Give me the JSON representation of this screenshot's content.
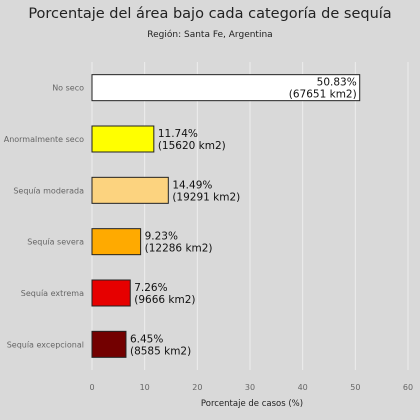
{
  "chart_data": {
    "type": "bar",
    "orientation": "horizontal",
    "title": "Porcentaje del área bajo cada categoría de sequía",
    "subtitle": "Región: Santa Fe, Argentina",
    "xlabel": "Porcentaje de casos (%)",
    "xlim": [
      0,
      60
    ],
    "xticks": [
      "0",
      "10",
      "20",
      "30",
      "40",
      "50",
      "60"
    ],
    "grid": true,
    "categories": [
      "No seco",
      "Anormalmente seco",
      "Sequía moderada",
      "Sequía severa",
      "Sequía extrema",
      "Sequía excepcional"
    ],
    "values": [
      50.83,
      11.74,
      14.49,
      9.23,
      7.26,
      6.45
    ],
    "labels": [
      [
        "50.83%",
        "(67651 km2)"
      ],
      [
        "11.74%",
        "(15620 km2)"
      ],
      [
        "14.49%",
        "(19291 km2)"
      ],
      [
        "9.23%",
        "(12286 km2)"
      ],
      [
        "7.26%",
        "(9666 km2)"
      ],
      [
        "6.45%",
        "(8585 km2)"
      ]
    ],
    "colors": [
      "#ffffff",
      "#ffff00",
      "#fcd37f",
      "#ffaa00",
      "#e60000",
      "#730000"
    ]
  }
}
